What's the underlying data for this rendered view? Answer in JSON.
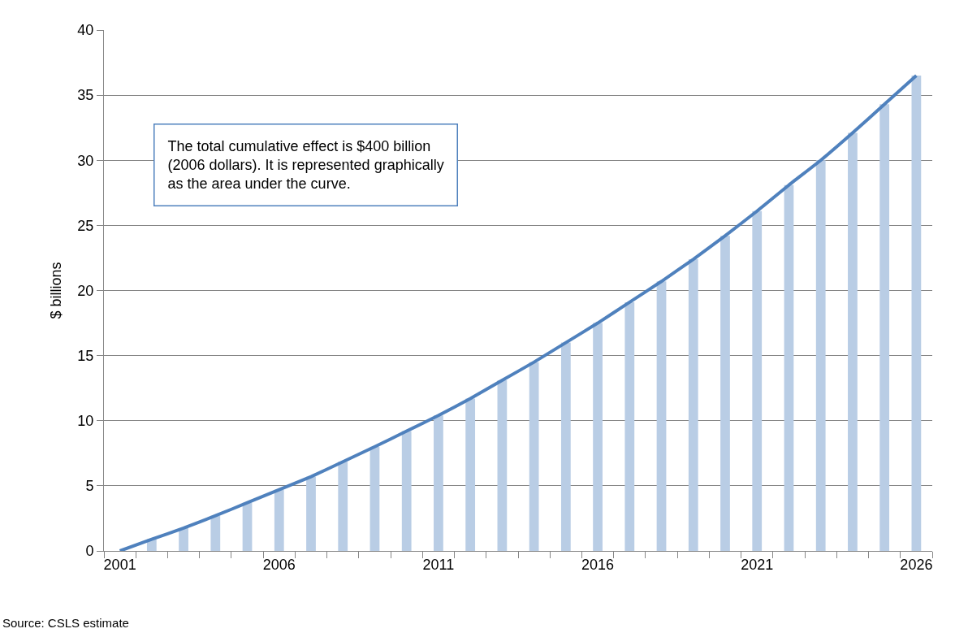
{
  "chart_data": {
    "type": "line",
    "ylabel": "$ billions",
    "categories": [
      "2001",
      null,
      null,
      null,
      null,
      "2006",
      null,
      null,
      null,
      null,
      "2011",
      null,
      null,
      null,
      null,
      "2016",
      null,
      null,
      null,
      null,
      "2021",
      null,
      null,
      null,
      null,
      "2026"
    ],
    "series": [
      {
        "type": "bar",
        "color": "#b9cde5",
        "values": [
          0,
          0.9,
          1.75,
          2.7,
          3.7,
          4.7,
          5.7,
          6.85,
          8.0,
          9.2,
          10.4,
          11.7,
          13.1,
          14.5,
          16.0,
          17.5,
          19.1,
          20.7,
          22.4,
          24.2,
          26.1,
          28.1,
          30.0,
          32.1,
          34.3,
          36.5
        ]
      },
      {
        "color": "#4f81bd",
        "values": [
          0,
          0.9,
          1.75,
          2.7,
          3.7,
          4.7,
          5.7,
          6.85,
          8.0,
          9.2,
          10.4,
          11.7,
          13.1,
          14.5,
          16.0,
          17.5,
          19.1,
          20.7,
          22.4,
          24.2,
          26.1,
          28.1,
          30.0,
          32.1,
          34.3,
          36.5
        ]
      }
    ],
    "ylim": [
      0,
      40
    ],
    "yticks": [
      0,
      5,
      10,
      15,
      20,
      25,
      30,
      35,
      40
    ],
    "grid": "y",
    "marker": "none",
    "line_style": "solid",
    "annotations": [
      "The total cumulative effect is $400 billion (2006 dollars). It is represented graphically as the area under the curve.",
      "Source: CSLS estimate"
    ]
  }
}
